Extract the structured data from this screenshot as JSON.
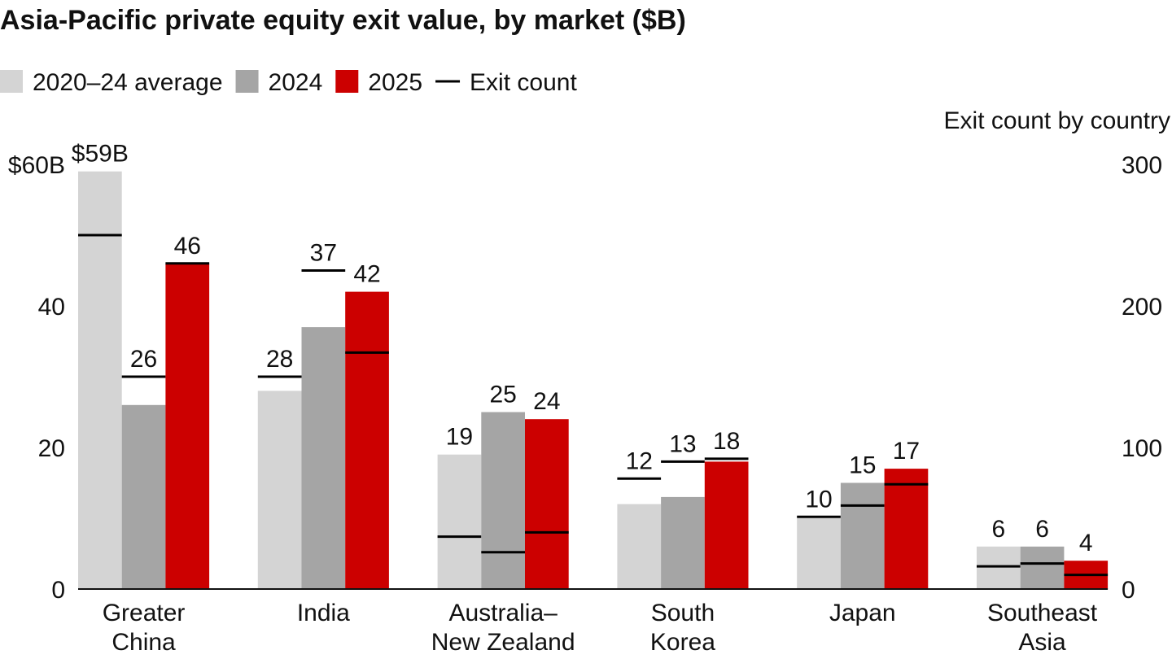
{
  "chart_data": {
    "type": "bar",
    "title": "Asia-Pacific private equity exit value, by market ($B)",
    "y2_label": "Exit count by country",
    "count_legend": "Exit count",
    "count_color": "#000000",
    "categories": [
      "Greater\nChina",
      "India",
      "Australia–\nNew Zealand",
      "South\nKorea",
      "Japan",
      "Southeast\nAsia"
    ],
    "series": [
      {
        "name": "2020–24 average",
        "color": "#d4d4d4",
        "values": [
          59,
          28,
          19,
          12,
          10,
          6
        ],
        "value_labels": [
          "$59B",
          "28",
          "19",
          "12",
          "10",
          "6"
        ],
        "exit_count": [
          250,
          150,
          37,
          78,
          51,
          16
        ]
      },
      {
        "name": "2024",
        "color": "#a5a5a5",
        "values": [
          26,
          37,
          25,
          13,
          15,
          6
        ],
        "exit_count": [
          150,
          225,
          26,
          90,
          59,
          18
        ]
      },
      {
        "name": "2025",
        "color": "#cc0000",
        "values": [
          46,
          42,
          24,
          18,
          17,
          4
        ],
        "exit_count": [
          230,
          167,
          40,
          92,
          74,
          10
        ]
      }
    ],
    "ylim": [
      0,
      60
    ],
    "yticks": [
      0,
      20,
      40,
      {
        "value": 60,
        "label": "$60B"
      }
    ],
    "y2lim": [
      0,
      300
    ],
    "y2ticks": [
      0,
      100,
      200,
      300
    ]
  }
}
